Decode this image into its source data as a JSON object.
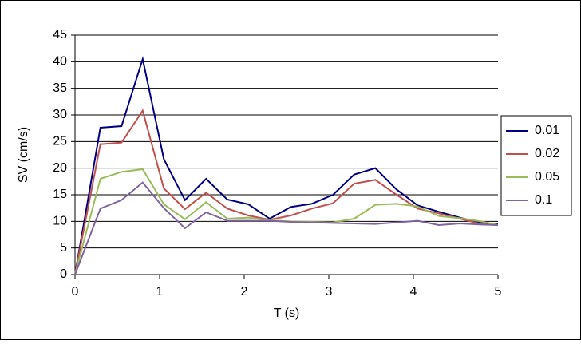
{
  "chart_data": {
    "type": "line",
    "xlabel": "T (s)",
    "ylabel": "SV (cm/s)",
    "x": [
      0,
      0.3,
      0.55,
      0.8,
      1.05,
      1.3,
      1.55,
      1.8,
      2.05,
      2.3,
      2.55,
      2.8,
      3.05,
      3.3,
      3.55,
      3.8,
      4.05,
      4.3,
      4.55,
      4.8,
      5
    ],
    "series": [
      {
        "name": "0.01",
        "color": "#000080",
        "values": [
          0,
          27.6,
          27.9,
          40.5,
          21.7,
          14,
          18,
          14.1,
          13.2,
          10.5,
          12.7,
          13.3,
          15,
          18.8,
          20,
          16,
          13,
          11.8,
          10.7,
          9.7,
          9.5
        ]
      },
      {
        "name": "0.02",
        "color": "#c0504d",
        "values": [
          0,
          24.5,
          24.8,
          30.8,
          16.2,
          12.3,
          15.4,
          12.4,
          11.1,
          10.3,
          11.1,
          12.4,
          13.4,
          17.1,
          17.8,
          15,
          12.4,
          11.5,
          10.5,
          9.5,
          9.3
        ]
      },
      {
        "name": "0.05",
        "color": "#9bbb59",
        "values": [
          0,
          18,
          19.3,
          19.8,
          13.2,
          10.4,
          13.6,
          10.5,
          10.7,
          10.2,
          10,
          9.9,
          9.8,
          10.5,
          13.1,
          13.3,
          12.8,
          11,
          10.6,
          10,
          9.3
        ]
      },
      {
        "name": "0.1",
        "color": "#8064a2",
        "values": [
          0,
          12.4,
          14,
          17.3,
          12.5,
          8.7,
          11.7,
          10.1,
          10.1,
          10.1,
          9.9,
          9.8,
          9.7,
          9.6,
          9.5,
          9.8,
          10.1,
          9.3,
          9.6,
          9.4,
          9.3
        ]
      }
    ],
    "xlim": [
      0,
      5
    ],
    "xticks": [
      0,
      1,
      2,
      3,
      4,
      5
    ],
    "ylim": [
      0,
      45
    ],
    "yticks": [
      0,
      5,
      10,
      15,
      20,
      25,
      30,
      35,
      40,
      45
    ],
    "grid": true,
    "legend": "right"
  }
}
